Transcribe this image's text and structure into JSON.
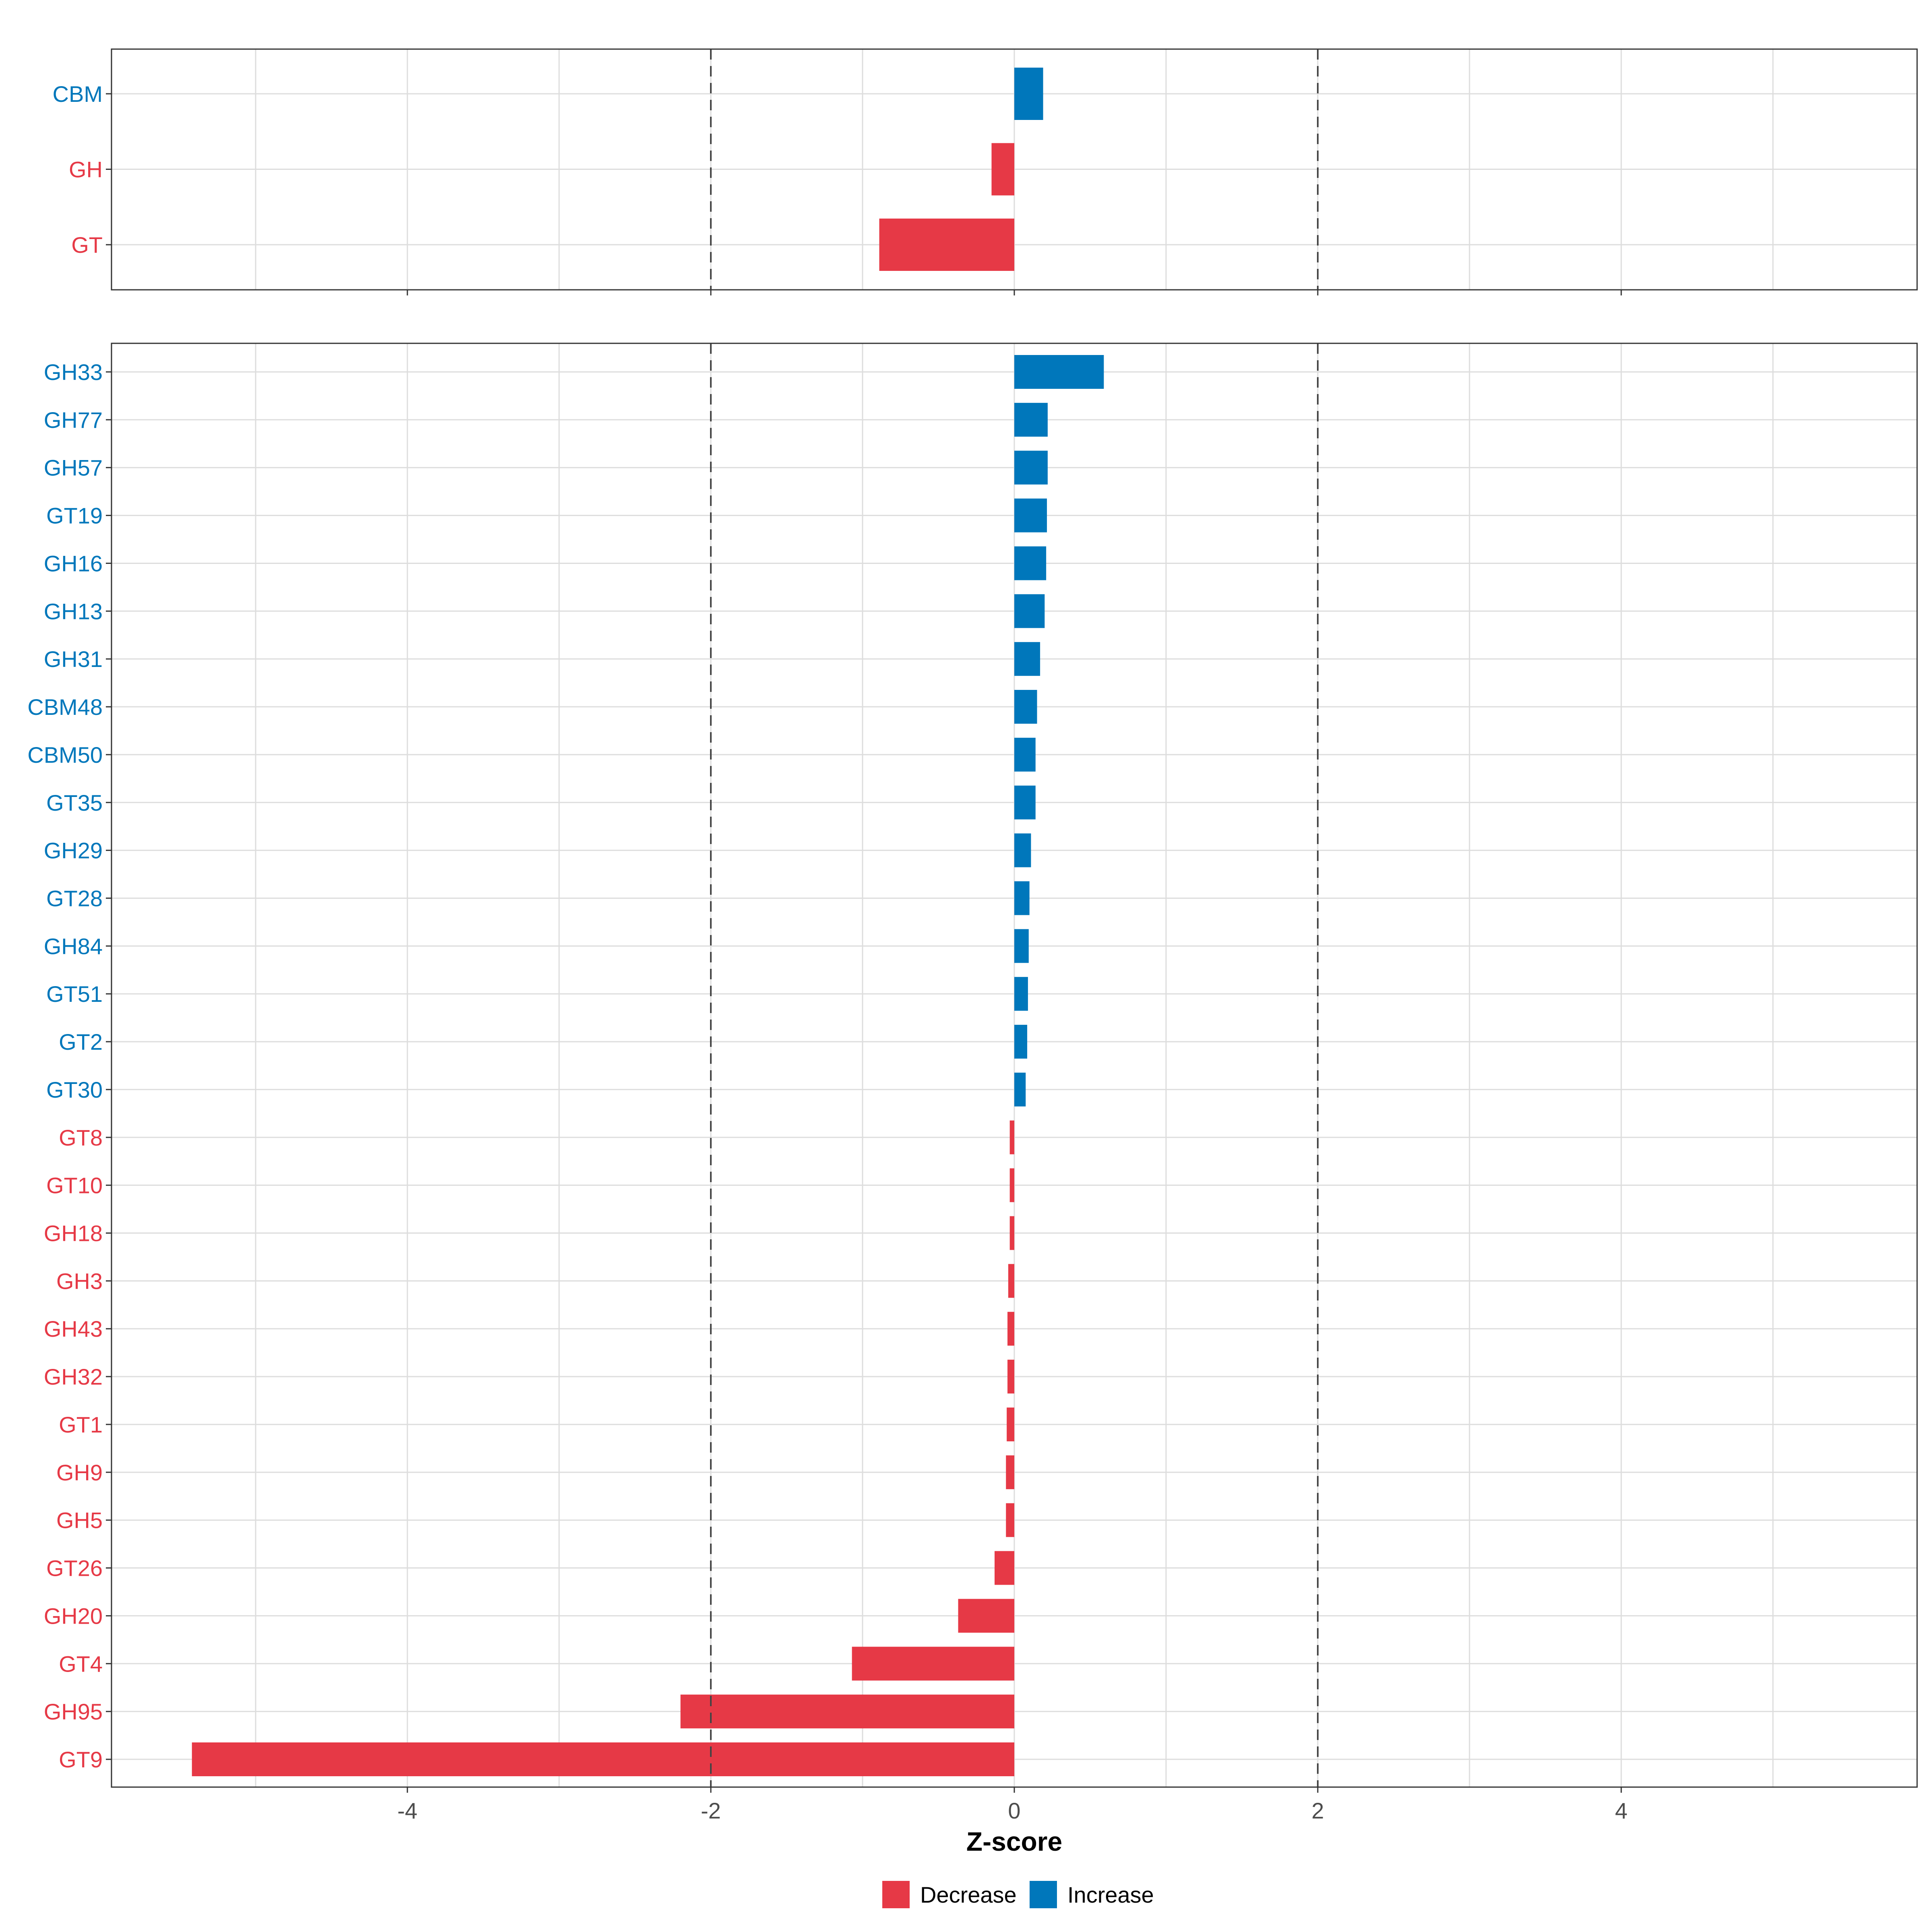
{
  "colors": {
    "increase": "#0077BB",
    "decrease": "#E63946",
    "grid": "#DDDDDD",
    "border": "#333333",
    "refline": "#444444",
    "axis_text": "#4D4D4D"
  },
  "chart_data": [
    {
      "type": "bar",
      "orientation": "horizontal",
      "panel": "class",
      "categories": [
        "CBM",
        "GH",
        "GT"
      ],
      "values": [
        0.19,
        -0.15,
        -0.89
      ],
      "groups": [
        "Increase",
        "Decrease",
        "Decrease"
      ],
      "xlim": [
        -5.95,
        5.95
      ],
      "xticks": [
        -4,
        -2,
        0,
        2,
        4
      ],
      "reference_lines": [
        -2,
        2
      ],
      "grid": true
    },
    {
      "type": "bar",
      "orientation": "horizontal",
      "panel": "family",
      "categories": [
        "GH33",
        "GH77",
        "GH57",
        "GT19",
        "GH16",
        "GH13",
        "GH31",
        "CBM48",
        "CBM50",
        "GT35",
        "GH29",
        "GT28",
        "GH84",
        "GT51",
        "GT2",
        "GT30",
        "GT8",
        "GT10",
        "GH18",
        "GH3",
        "GH43",
        "GH32",
        "GT1",
        "GH9",
        "GH5",
        "GT26",
        "GH20",
        "GT4",
        "GH95",
        "GT9"
      ],
      "values": [
        0.59,
        0.22,
        0.22,
        0.215,
        0.21,
        0.2,
        0.17,
        0.15,
        0.14,
        0.14,
        0.11,
        0.1,
        0.095,
        0.09,
        0.085,
        0.075,
        -0.03,
        -0.03,
        -0.03,
        -0.04,
        -0.045,
        -0.045,
        -0.05,
        -0.055,
        -0.055,
        -0.13,
        -0.37,
        -1.07,
        -2.2,
        -5.42
      ],
      "groups": [
        "Increase",
        "Increase",
        "Increase",
        "Increase",
        "Increase",
        "Increase",
        "Increase",
        "Increase",
        "Increase",
        "Increase",
        "Increase",
        "Increase",
        "Increase",
        "Increase",
        "Increase",
        "Increase",
        "Decrease",
        "Decrease",
        "Decrease",
        "Decrease",
        "Decrease",
        "Decrease",
        "Decrease",
        "Decrease",
        "Decrease",
        "Decrease",
        "Decrease",
        "Decrease",
        "Decrease",
        "Decrease"
      ],
      "xlabel": "Z-score",
      "xlim": [
        -5.95,
        5.95
      ],
      "xticks": [
        -4,
        -2,
        0,
        2,
        4
      ],
      "xtick_labels": [
        "-4",
        "-2",
        "0",
        "2",
        "4"
      ],
      "reference_lines": [
        -2,
        2
      ],
      "grid": true
    }
  ],
  "legend": {
    "position": "bottom",
    "items": [
      {
        "label": "Decrease",
        "key": "decrease"
      },
      {
        "label": "Increase",
        "key": "increase"
      }
    ]
  }
}
